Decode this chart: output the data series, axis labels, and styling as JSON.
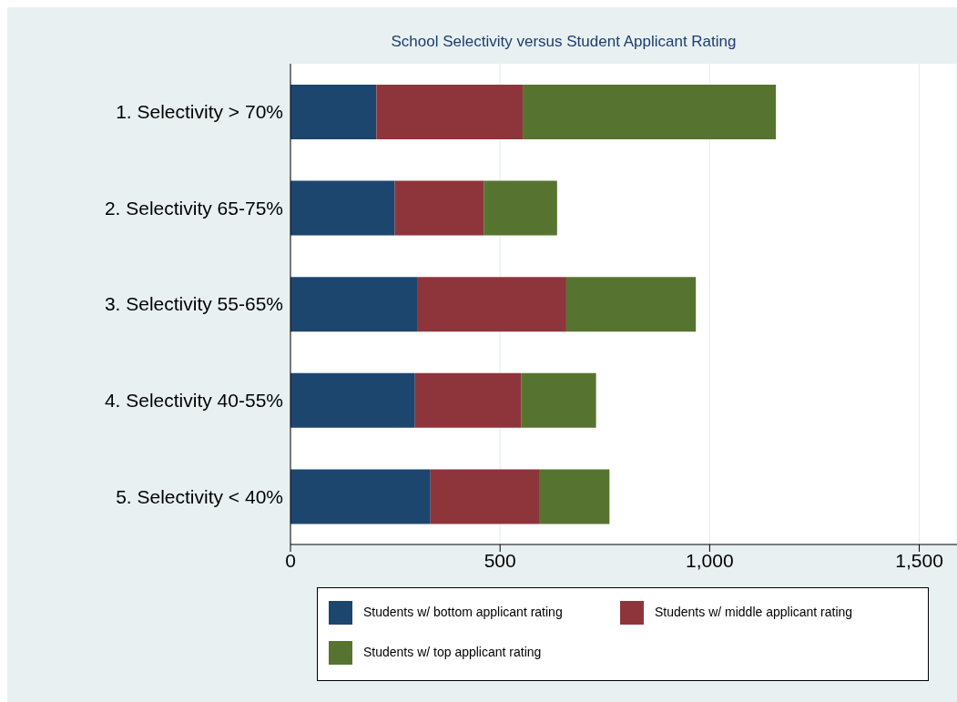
{
  "chart_data": {
    "type": "bar",
    "orientation": "horizontal",
    "stacked": true,
    "title": "School Selectivity versus Student Applicant Rating",
    "categories": [
      "1. Selectivity > 70%",
      "2. Selectivity 65-75%",
      "3. Selectivity 55-65%",
      "4. Selectivity 40-55%",
      "5. Selectivity < 40%"
    ],
    "series": [
      {
        "name": "Students w/ bottom applicant rating",
        "color": "#1c466e",
        "values": [
          205,
          249,
          302,
          297,
          334
        ]
      },
      {
        "name": "Students w/ middle applicant rating",
        "color": "#8e353c",
        "values": [
          349,
          212,
          356,
          253,
          259
        ]
      },
      {
        "name": "Students w/ top applicant rating",
        "color": "#56742f",
        "values": [
          604,
          175,
          309,
          179,
          168
        ]
      }
    ],
    "xlim": [
      0,
      1590
    ],
    "xticks": [
      0,
      500,
      {
        "value": 1000,
        "label": "1,000"
      },
      {
        "value": 1500,
        "label": "1,500"
      }
    ],
    "grid": "x",
    "legend": "bottom"
  }
}
